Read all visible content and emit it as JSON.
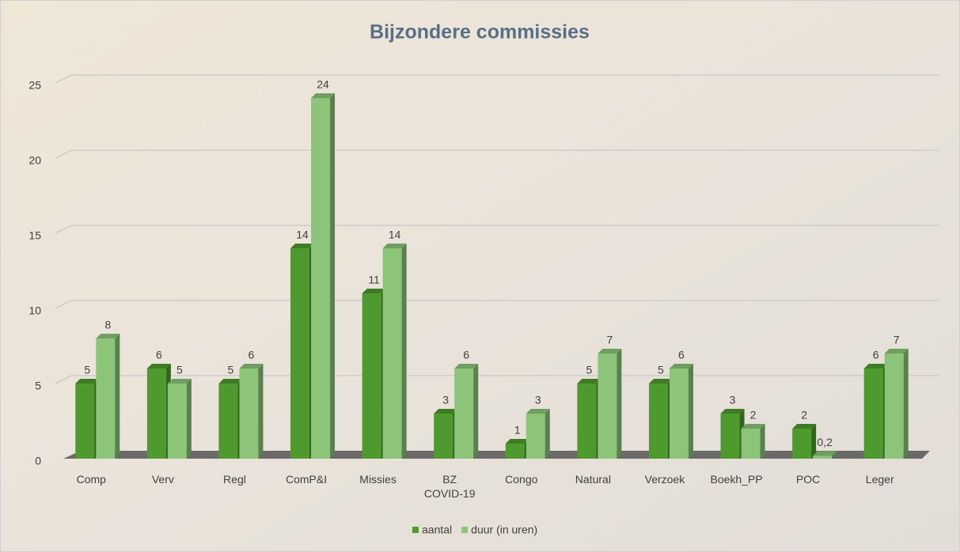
{
  "chart_data": {
    "type": "bar3d",
    "title": "Bijzondere commissies",
    "categories": [
      "Comp",
      "Verv",
      "Regl",
      "ComP&I",
      "Missies",
      "BZ COVID-19",
      "Congo",
      "Natural",
      "Verzoek",
      "Boekh_PP",
      "POC",
      "Leger"
    ],
    "series": [
      {
        "name": "aantal",
        "color": "#4f9a2e",
        "values": [
          5,
          6,
          5,
          14,
          11,
          3,
          1,
          5,
          5,
          3,
          2,
          6
        ]
      },
      {
        "name": "duur (in uren)",
        "color": "#8cc47a",
        "values": [
          8,
          5,
          6,
          24,
          14,
          6,
          3,
          7,
          6,
          2,
          0.2,
          7
        ],
        "value_labels": [
          "8",
          "5",
          "6",
          "24",
          "14",
          "6",
          "3",
          "7",
          "6",
          "2",
          "0,2",
          "7"
        ]
      }
    ],
    "ylim": [
      0,
      25
    ],
    "yticks": [
      0,
      5,
      10,
      15,
      20,
      25
    ],
    "grid": true,
    "legend": "bottom"
  }
}
